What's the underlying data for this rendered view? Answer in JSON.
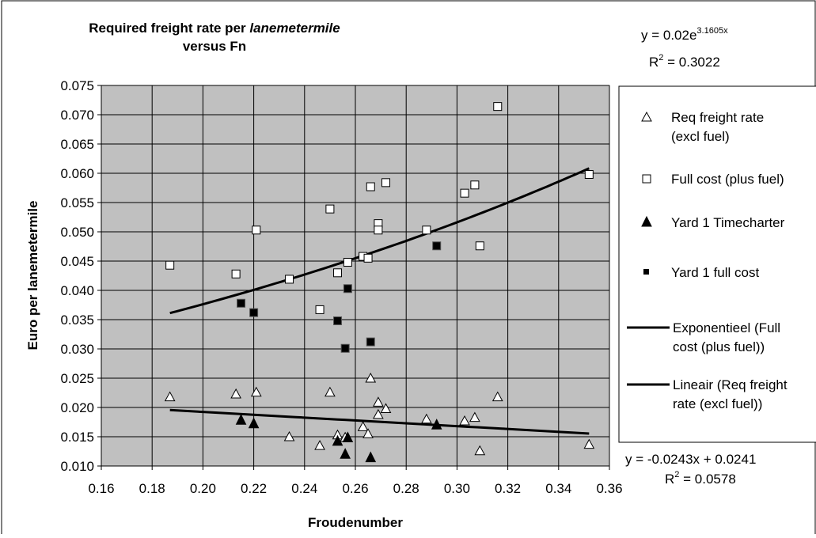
{
  "chart_data": {
    "type": "scatter",
    "title": {
      "before": "Required freight rate per ",
      "italic": "lanemetermile",
      "line2": "versus Fn"
    },
    "xlabel": "Froudenumber",
    "ylabel": "Euro per lanemetermile",
    "xlim": [
      0.16,
      0.36
    ],
    "ylim": [
      0.01,
      0.075
    ],
    "x_ticks": [
      "0.16",
      "0.18",
      "0.20",
      "0.22",
      "0.24",
      "0.26",
      "0.28",
      "0.30",
      "0.32",
      "0.34",
      "0.36"
    ],
    "y_ticks": [
      "0.010",
      "0.015",
      "0.020",
      "0.025",
      "0.030",
      "0.035",
      "0.040",
      "0.045",
      "0.050",
      "0.055",
      "0.060",
      "0.065",
      "0.070",
      "0.075"
    ],
    "grid": true,
    "plot_background": "#c0c0c0",
    "legend_position": "right",
    "series": [
      {
        "name": "Req freight rate (excl fuel)",
        "legend_lines": [
          "Req freight rate",
          "(excl fuel)"
        ],
        "marker": "open-triangle",
        "points": [
          [
            0.187,
            0.0218
          ],
          [
            0.213,
            0.0223
          ],
          [
            0.221,
            0.0226
          ],
          [
            0.234,
            0.015
          ],
          [
            0.246,
            0.0135
          ],
          [
            0.25,
            0.0226
          ],
          [
            0.253,
            0.0153
          ],
          [
            0.256,
            0.0149
          ],
          [
            0.263,
            0.0167
          ],
          [
            0.265,
            0.0155
          ],
          [
            0.266,
            0.025
          ],
          [
            0.269,
            0.0209
          ],
          [
            0.269,
            0.0188
          ],
          [
            0.272,
            0.0198
          ],
          [
            0.288,
            0.018
          ],
          [
            0.303,
            0.0177
          ],
          [
            0.307,
            0.0183
          ],
          [
            0.309,
            0.0126
          ],
          [
            0.316,
            0.0218
          ],
          [
            0.352,
            0.0137
          ]
        ]
      },
      {
        "name": "Full cost (plus fuel)",
        "legend_lines": [
          "Full cost (plus fuel)"
        ],
        "marker": "open-square",
        "points": [
          [
            0.187,
            0.0443
          ],
          [
            0.213,
            0.0428
          ],
          [
            0.221,
            0.0503
          ],
          [
            0.234,
            0.0419
          ],
          [
            0.246,
            0.0367
          ],
          [
            0.25,
            0.0539
          ],
          [
            0.253,
            0.043
          ],
          [
            0.257,
            0.0448
          ],
          [
            0.263,
            0.0458
          ],
          [
            0.265,
            0.0455
          ],
          [
            0.266,
            0.0577
          ],
          [
            0.269,
            0.0514
          ],
          [
            0.269,
            0.0503
          ],
          [
            0.272,
            0.0584
          ],
          [
            0.288,
            0.0503
          ],
          [
            0.303,
            0.0566
          ],
          [
            0.307,
            0.058
          ],
          [
            0.309,
            0.0476
          ],
          [
            0.316,
            0.0714
          ],
          [
            0.352,
            0.0598
          ]
        ]
      },
      {
        "name": "Yard 1 Timecharter",
        "legend_lines": [
          "Yard 1 Timecharter"
        ],
        "marker": "filled-triangle",
        "points": [
          [
            0.215,
            0.0178
          ],
          [
            0.22,
            0.0172
          ],
          [
            0.253,
            0.0142
          ],
          [
            0.256,
            0.012
          ],
          [
            0.257,
            0.0148
          ],
          [
            0.266,
            0.0114
          ],
          [
            0.292,
            0.017
          ]
        ]
      },
      {
        "name": "Yard 1 full cost",
        "legend_lines": [
          "Yard 1 full cost"
        ],
        "marker": "filled-square",
        "points": [
          [
            0.215,
            0.0378
          ],
          [
            0.22,
            0.0362
          ],
          [
            0.253,
            0.0348
          ],
          [
            0.256,
            0.0301
          ],
          [
            0.257,
            0.0403
          ],
          [
            0.266,
            0.0312
          ],
          [
            0.292,
            0.0476
          ]
        ]
      }
    ],
    "trendlines": [
      {
        "name": "Exponentieel (Full cost (plus fuel))",
        "legend_lines": [
          "Exponentieel (Full",
          "cost (plus fuel))"
        ],
        "kind": "exponential",
        "a": 0.02,
        "b": 3.1605,
        "x_range": [
          0.187,
          0.352
        ],
        "equation": {
          "prefix": "y = 0.02e",
          "superscript": "3.1605x"
        },
        "r2": {
          "label": "R",
          "value": " = 0.3022"
        }
      },
      {
        "name": "Lineair (Req freight rate (excl fuel))",
        "legend_lines": [
          "Lineair (Req freight",
          "rate (excl fuel))"
        ],
        "kind": "linear",
        "slope": -0.0243,
        "intercept": 0.0241,
        "x_range": [
          0.187,
          0.352
        ],
        "equation": {
          "text": "y = -0.0243x + 0.0241"
        },
        "r2": {
          "label": "R",
          "value": " = 0.0578"
        }
      }
    ]
  }
}
